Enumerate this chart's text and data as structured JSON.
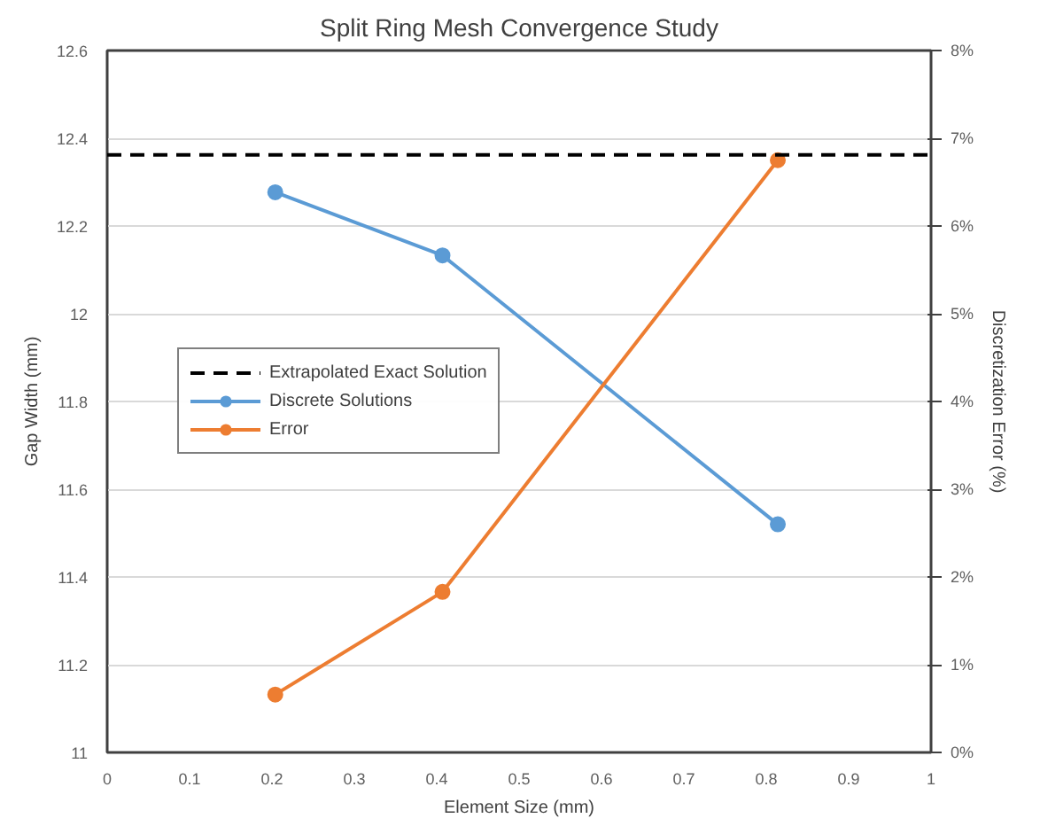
{
  "chart_data": {
    "type": "line",
    "title": "Split Ring Mesh Convergence Study",
    "xlabel": "Element Size (mm)",
    "ylabel": "Gap Width (mm)",
    "y2label": "Discretization Error (%)",
    "x": [
      0.204,
      0.407,
      0.814
    ],
    "series": [
      {
        "name": "Discrete Solutions",
        "color": "#5b9bd5",
        "values": [
          12.277,
          12.133,
          11.52
        ]
      },
      {
        "name": "Error",
        "color": "#ed7d31",
        "values": [
          0.66,
          1.83,
          6.75
        ],
        "axis": "y2"
      }
    ],
    "ref_lines": [
      {
        "axis": "y",
        "value": 12.362,
        "label": "Extrapolated Exact Solution",
        "color": "#000000",
        "line_style": "dashed"
      }
    ],
    "xlim": [
      0,
      1
    ],
    "xticks": [
      0,
      0.1,
      0.2,
      0.3,
      0.4,
      0.5,
      0.6,
      0.7,
      0.8,
      0.9,
      1
    ],
    "ylim": [
      11,
      12.6
    ],
    "yticks": [
      11,
      11.2,
      11.4,
      11.6,
      11.8,
      12,
      12.2,
      12.4,
      12.6
    ],
    "y2lim": [
      0,
      8
    ],
    "y2ticks": [
      {
        "value": 0,
        "label": "0%"
      },
      {
        "value": 1,
        "label": "1%"
      },
      {
        "value": 2,
        "label": "2%"
      },
      {
        "value": 3,
        "label": "3%"
      },
      {
        "value": 4,
        "label": "4%"
      },
      {
        "value": 5,
        "label": "5%"
      },
      {
        "value": 6,
        "label": "6%"
      },
      {
        "value": 7,
        "label": "7%"
      },
      {
        "value": 8,
        "label": "8%"
      }
    ],
    "grid": "y",
    "legend": "left",
    "marker": "circle",
    "line_style": "solid"
  }
}
